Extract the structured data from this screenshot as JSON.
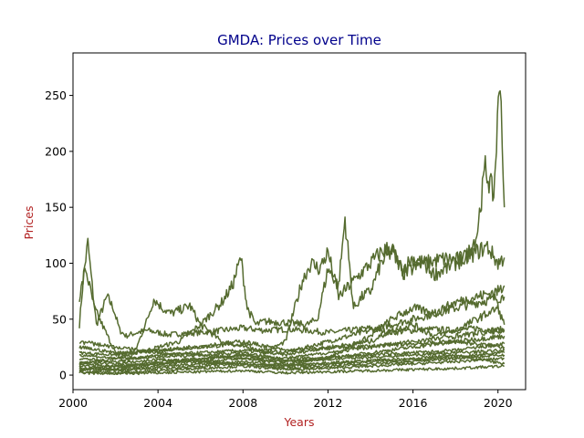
{
  "chart_data": {
    "type": "line",
    "title": "GMDA: Prices over Time",
    "xlabel": "Years",
    "ylabel": "Prices",
    "xlim": [
      2000.0,
      2021.3
    ],
    "ylim": [
      -13,
      288
    ],
    "x_ticks": [
      2000,
      2004,
      2008,
      2012,
      2016,
      2020
    ],
    "y_ticks": [
      0,
      50,
      100,
      150,
      200,
      250
    ],
    "grid": false,
    "legend": "none",
    "colors": {
      "line": "#556b2f",
      "title": "#00008b",
      "axis_label": "#b22222"
    },
    "series": [
      {
        "x": [
          2000.3,
          2000.5,
          2000.7,
          2000.9,
          2001.1,
          2001.3,
          2001.6,
          2001.9,
          2002.2,
          2002.5,
          2003.0,
          2003.5,
          2004.0,
          2004.5,
          2005.0,
          2006.0,
          2007.0,
          2008.0,
          2009.0,
          2010.0,
          2011.0,
          2012.0,
          2013.0,
          2014.0,
          2015.0,
          2016.0,
          2017.0,
          2018.0,
          2019.0,
          2019.8,
          2020.3
        ],
        "y": [
          45,
          90,
          118,
          80,
          45,
          55,
          70,
          60,
          40,
          35,
          38,
          40,
          38,
          36,
          37,
          38,
          40,
          42,
          40,
          41,
          40,
          38,
          40,
          42,
          38,
          40,
          41,
          40,
          42,
          40,
          41
        ]
      },
      {
        "x": [
          2000.3,
          2000.6,
          2001.0,
          2001.5,
          2002.0,
          2002.5,
          2003.0,
          2003.5,
          2003.8,
          2004.2,
          2004.6,
          2005.0,
          2005.5,
          2006.0,
          2007.0,
          2008.0,
          2009.0,
          2010.0,
          2011.0,
          2012.0,
          2013.0,
          2014.0,
          2015.0,
          2016.0,
          2017.0,
          2018.0,
          2019.0,
          2020.3
        ],
        "y": [
          70,
          95,
          60,
          40,
          20,
          10,
          25,
          50,
          68,
          60,
          55,
          58,
          62,
          45,
          30,
          25,
          22,
          20,
          25,
          30,
          35,
          40,
          45,
          50,
          55,
          60,
          65,
          70
        ]
      },
      {
        "x": [
          2000.3,
          2001.0,
          2002.0,
          2003.0,
          2004.0,
          2005.0,
          2006.0,
          2007.0,
          2007.5,
          2007.9,
          2008.2,
          2008.6,
          2009.0,
          2010.0,
          2011.0,
          2011.5,
          2012.0,
          2012.5,
          2012.8,
          2013.2,
          2013.6,
          2014.0,
          2014.5,
          2015.0,
          2015.5,
          2016.0,
          2016.5,
          2017.0,
          2017.5,
          2018.0,
          2018.5,
          2019.0,
          2019.4,
          2019.8,
          2020.1,
          2020.3
        ],
        "y": [
          10,
          12,
          15,
          20,
          25,
          30,
          45,
          65,
          80,
          105,
          60,
          45,
          48,
          47,
          45,
          50,
          95,
          80,
          140,
          60,
          70,
          75,
          100,
          110,
          95,
          105,
          100,
          102,
          104,
          103,
          105,
          125,
          185,
          160,
          272,
          150
        ]
      },
      {
        "x": [
          2000.3,
          2002.0,
          2004.0,
          2006.0,
          2008.0,
          2009.0,
          2010.0,
          2010.8,
          2011.2,
          2011.6,
          2012.0,
          2012.5,
          2013.0,
          2013.5,
          2014.0,
          2014.5,
          2015.0,
          2015.5,
          2016.0,
          2016.5,
          2017.0,
          2017.5,
          2018.0,
          2018.5,
          2019.0,
          2019.5,
          2020.0,
          2020.3
        ],
        "y": [
          20,
          18,
          22,
          25,
          28,
          20,
          30,
          85,
          100,
          95,
          110,
          70,
          80,
          90,
          100,
          110,
          115,
          90,
          95,
          100,
          90,
          95,
          100,
          105,
          110,
          115,
          100,
          105
        ]
      },
      {
        "x": [
          2000.3,
          2002.0,
          2004.0,
          2006.0,
          2008.0,
          2010.0,
          2012.0,
          2013.0,
          2014.0,
          2015.0,
          2016.0,
          2017.0,
          2018.0,
          2019.0,
          2020.0,
          2020.3
        ],
        "y": [
          5,
          8,
          10,
          12,
          15,
          10,
          15,
          25,
          35,
          50,
          60,
          55,
          65,
          70,
          75,
          80
        ]
      },
      {
        "x": [
          2000.3,
          2002.0,
          2004.0,
          2006.0,
          2008.0,
          2010.0,
          2012.0,
          2014.0,
          2015.0,
          2016.0,
          2017.0,
          2018.0,
          2019.0,
          2020.0,
          2020.3
        ],
        "y": [
          15,
          12,
          18,
          20,
          22,
          18,
          25,
          30,
          40,
          45,
          35,
          40,
          50,
          60,
          45
        ]
      },
      {
        "x": [
          2000.3,
          2002.0,
          2004.0,
          2006.0,
          2008.0,
          2010.0,
          2012.0,
          2014.0,
          2016.0,
          2018.0,
          2020.3
        ],
        "y": [
          8,
          6,
          10,
          14,
          18,
          12,
          15,
          20,
          25,
          30,
          35
        ]
      },
      {
        "x": [
          2000.3,
          2002.0,
          2004.0,
          2006.0,
          2008.0,
          2010.0,
          2012.0,
          2014.0,
          2016.0,
          2018.0,
          2020.3
        ],
        "y": [
          3,
          2,
          4,
          6,
          8,
          5,
          6,
          8,
          10,
          12,
          15
        ]
      },
      {
        "x": [
          2000.3,
          2002.0,
          2004.0,
          2006.0,
          2008.0,
          2010.0,
          2012.0,
          2014.0,
          2016.0,
          2018.0,
          2020.3
        ],
        "y": [
          12,
          10,
          14,
          12,
          10,
          8,
          10,
          12,
          14,
          16,
          20
        ]
      },
      {
        "x": [
          2000.3,
          2002.0,
          2004.0,
          2006.0,
          2008.0,
          2010.0,
          2012.0,
          2014.0,
          2016.0,
          2018.0,
          2020.3
        ],
        "y": [
          25,
          20,
          22,
          26,
          30,
          22,
          24,
          26,
          28,
          30,
          25
        ]
      },
      {
        "x": [
          2000.3,
          2002.0,
          2004.0,
          2006.0,
          2008.0,
          2010.0,
          2012.0,
          2014.0,
          2016.0,
          2018.0,
          2020.3
        ],
        "y": [
          5,
          4,
          6,
          8,
          10,
          6,
          8,
          10,
          12,
          15,
          18
        ]
      },
      {
        "x": [
          2000.3,
          2002.0,
          2004.0,
          2006.0,
          2008.0,
          2010.0,
          2012.0,
          2014.0,
          2016.0,
          2018.0,
          2020.3
        ],
        "y": [
          18,
          15,
          16,
          18,
          20,
          14,
          16,
          18,
          20,
          22,
          28
        ]
      },
      {
        "x": [
          2000.3,
          2002.0,
          2004.0,
          2006.0,
          2008.0,
          2010.0,
          2012.0,
          2014.0,
          2016.0,
          2018.0,
          2020.3
        ],
        "y": [
          2,
          1,
          2,
          3,
          4,
          2,
          3,
          4,
          5,
          6,
          8
        ]
      },
      {
        "x": [
          2000.3,
          2002.0,
          2004.0,
          2006.0,
          2008.0,
          2010.0,
          2012.0,
          2014.0,
          2016.0,
          2018.0,
          2020.3
        ],
        "y": [
          30,
          25,
          20,
          18,
          15,
          12,
          14,
          16,
          18,
          20,
          22
        ]
      },
      {
        "x": [
          2000.3,
          2002.0,
          2004.0,
          2006.0,
          2008.0,
          2010.0,
          2012.0,
          2014.0,
          2016.0,
          2018.0,
          2020.3
        ],
        "y": [
          10,
          8,
          12,
          15,
          18,
          15,
          20,
          25,
          30,
          35,
          40
        ]
      },
      {
        "x": [
          2000.3,
          2002.0,
          2004.0,
          2006.0,
          2008.0,
          2010.0,
          2012.0,
          2014.0,
          2016.0,
          2018.0,
          2020.3
        ],
        "y": [
          6,
          5,
          8,
          10,
          12,
          9,
          11,
          13,
          15,
          18,
          10
        ]
      }
    ]
  }
}
